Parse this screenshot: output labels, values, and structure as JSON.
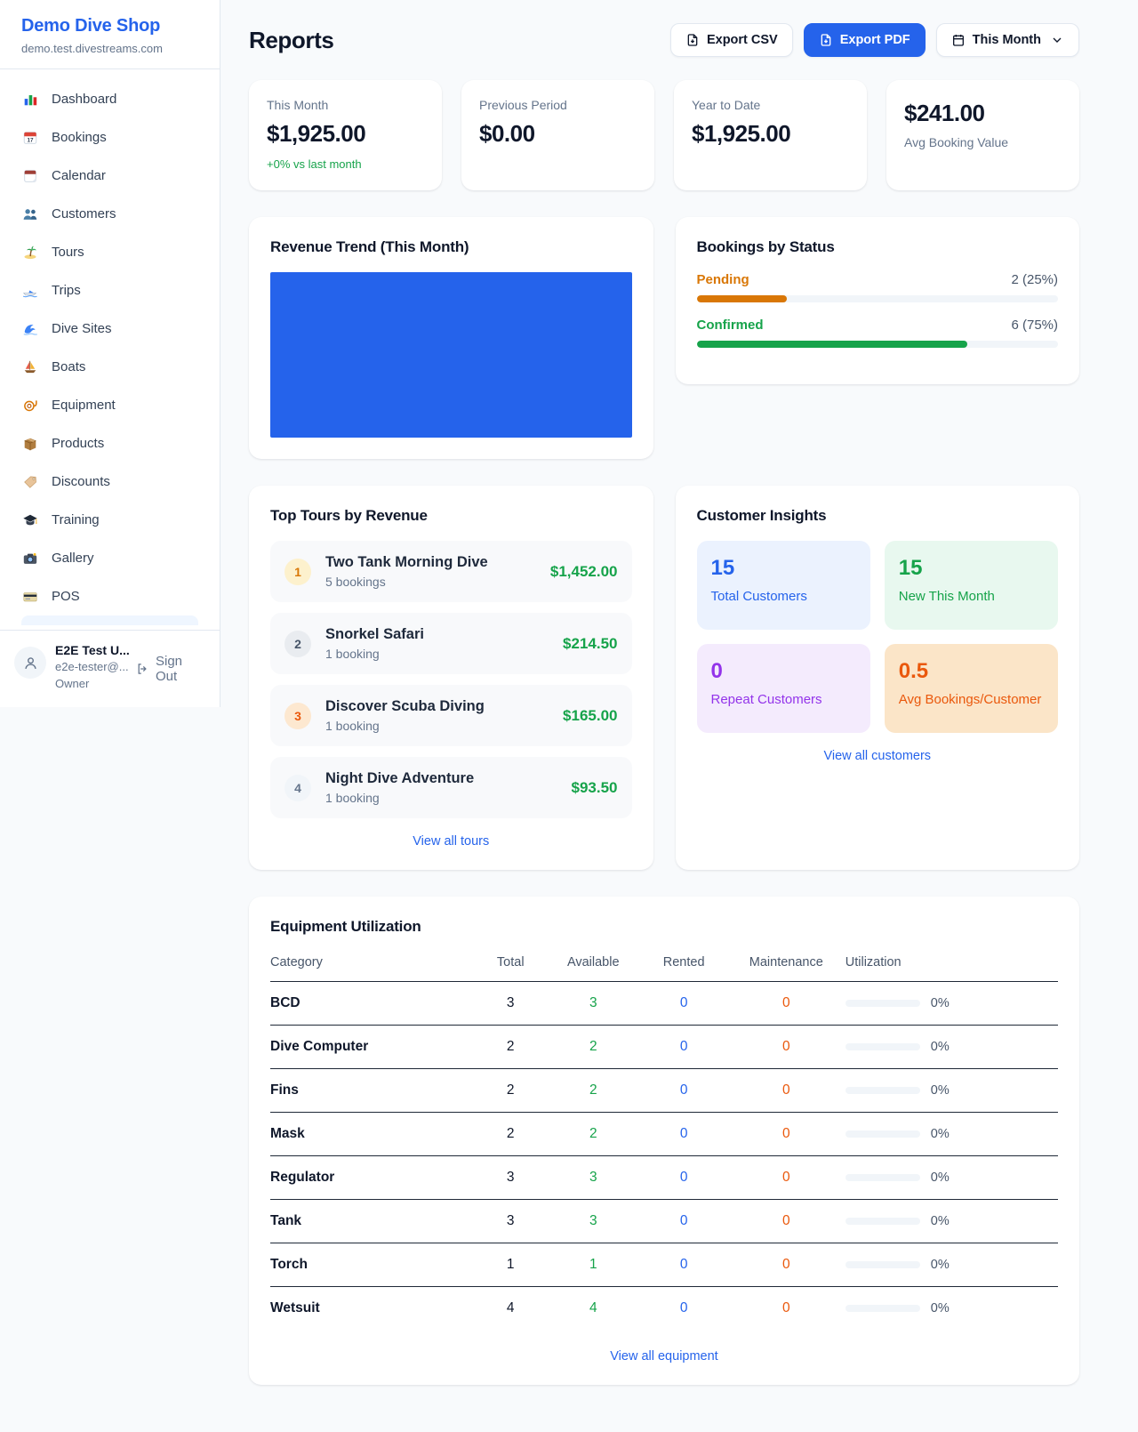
{
  "colors": {
    "accent": "#2563eb",
    "green": "#16a34a",
    "amber": "#d97706",
    "orange": "#ea580c",
    "purple": "#9333ea",
    "chart_fill": "#2563eb",
    "background": "#f8fafc"
  },
  "sidebar": {
    "brand": {
      "name": "Demo Dive Shop",
      "domain": "demo.test.divestreams.com"
    },
    "nav": [
      {
        "icon": "dashboard-icon",
        "label": "Dashboard"
      },
      {
        "icon": "bookings-icon",
        "label": "Bookings"
      },
      {
        "icon": "calendar-icon",
        "label": "Calendar"
      },
      {
        "icon": "customers-icon",
        "label": "Customers"
      },
      {
        "icon": "tours-icon",
        "label": "Tours"
      },
      {
        "icon": "trips-icon",
        "label": "Trips"
      },
      {
        "icon": "dive-sites-icon",
        "label": "Dive Sites"
      },
      {
        "icon": "boats-icon",
        "label": "Boats"
      },
      {
        "icon": "equipment-icon",
        "label": "Equipment"
      },
      {
        "icon": "products-icon",
        "label": "Products"
      },
      {
        "icon": "discounts-icon",
        "label": "Discounts"
      },
      {
        "icon": "training-icon",
        "label": "Training"
      },
      {
        "icon": "gallery-icon",
        "label": "Gallery"
      },
      {
        "icon": "pos-icon",
        "label": "POS"
      }
    ],
    "user": {
      "name": "E2E Test U...",
      "email": "e2e-tester@...",
      "role": "Owner",
      "signout_label": "Sign Out"
    }
  },
  "header": {
    "title": "Reports",
    "export_csv_label": "Export CSV",
    "export_pdf_label": "Export PDF",
    "period_label": "This Month"
  },
  "stats": {
    "this_month": {
      "label": "This Month",
      "value": "$1,925.00",
      "delta": "+0% vs last month"
    },
    "previous_period": {
      "label": "Previous Period",
      "value": "$0.00"
    },
    "year_to_date": {
      "label": "Year to Date",
      "value": "$1,925.00"
    },
    "avg_booking": {
      "value": "$241.00",
      "label": "Avg Booking Value"
    }
  },
  "revenue_trend": {
    "title": "Revenue Trend (This Month)",
    "chart": {
      "type": "area",
      "note": "solid filled plot area, no visible axes or labels",
      "fill": "#2563eb"
    }
  },
  "bookings_status": {
    "title": "Bookings by Status",
    "items": [
      {
        "label": "Pending",
        "count_text": "2 (25%)",
        "pct": 25
      },
      {
        "label": "Confirmed",
        "count_text": "6 (75%)",
        "pct": 75
      }
    ]
  },
  "top_tours": {
    "title": "Top Tours by Revenue",
    "items": [
      {
        "rank": "1",
        "name": "Two Tank Morning Dive",
        "bookings": "5 bookings",
        "revenue": "$1,452.00"
      },
      {
        "rank": "2",
        "name": "Snorkel Safari",
        "bookings": "1 booking",
        "revenue": "$214.50"
      },
      {
        "rank": "3",
        "name": "Discover Scuba Diving",
        "bookings": "1 booking",
        "revenue": "$165.00"
      },
      {
        "rank": "4",
        "name": "Night Dive Adventure",
        "bookings": "1 booking",
        "revenue": "$93.50"
      }
    ],
    "view_all": "View all tours"
  },
  "customer_insights": {
    "title": "Customer Insights",
    "tiles": [
      {
        "value": "15",
        "label": "Total Customers"
      },
      {
        "value": "15",
        "label": "New This Month"
      },
      {
        "value": "0",
        "label": "Repeat Customers"
      },
      {
        "value": "0.5",
        "label": "Avg Bookings/Customer"
      }
    ],
    "view_all": "View all customers"
  },
  "equipment": {
    "title": "Equipment Utilization",
    "columns": [
      "Category",
      "Total",
      "Available",
      "Rented",
      "Maintenance",
      "Utilization"
    ],
    "rows": [
      {
        "category": "BCD",
        "total": "3",
        "available": "3",
        "rented": "0",
        "maintenance": "0",
        "utilization_pct": 0,
        "utilization_text": "0%"
      },
      {
        "category": "Dive Computer",
        "total": "2",
        "available": "2",
        "rented": "0",
        "maintenance": "0",
        "utilization_pct": 0,
        "utilization_text": "0%"
      },
      {
        "category": "Fins",
        "total": "2",
        "available": "2",
        "rented": "0",
        "maintenance": "0",
        "utilization_pct": 0,
        "utilization_text": "0%"
      },
      {
        "category": "Mask",
        "total": "2",
        "available": "2",
        "rented": "0",
        "maintenance": "0",
        "utilization_pct": 0,
        "utilization_text": "0%"
      },
      {
        "category": "Regulator",
        "total": "3",
        "available": "3",
        "rented": "0",
        "maintenance": "0",
        "utilization_pct": 0,
        "utilization_text": "0%"
      },
      {
        "category": "Tank",
        "total": "3",
        "available": "3",
        "rented": "0",
        "maintenance": "0",
        "utilization_pct": 0,
        "utilization_text": "0%"
      },
      {
        "category": "Torch",
        "total": "1",
        "available": "1",
        "rented": "0",
        "maintenance": "0",
        "utilization_pct": 0,
        "utilization_text": "0%"
      },
      {
        "category": "Wetsuit",
        "total": "4",
        "available": "4",
        "rented": "0",
        "maintenance": "0",
        "utilization_pct": 0,
        "utilization_text": "0%"
      }
    ],
    "view_all": "View all equipment"
  }
}
